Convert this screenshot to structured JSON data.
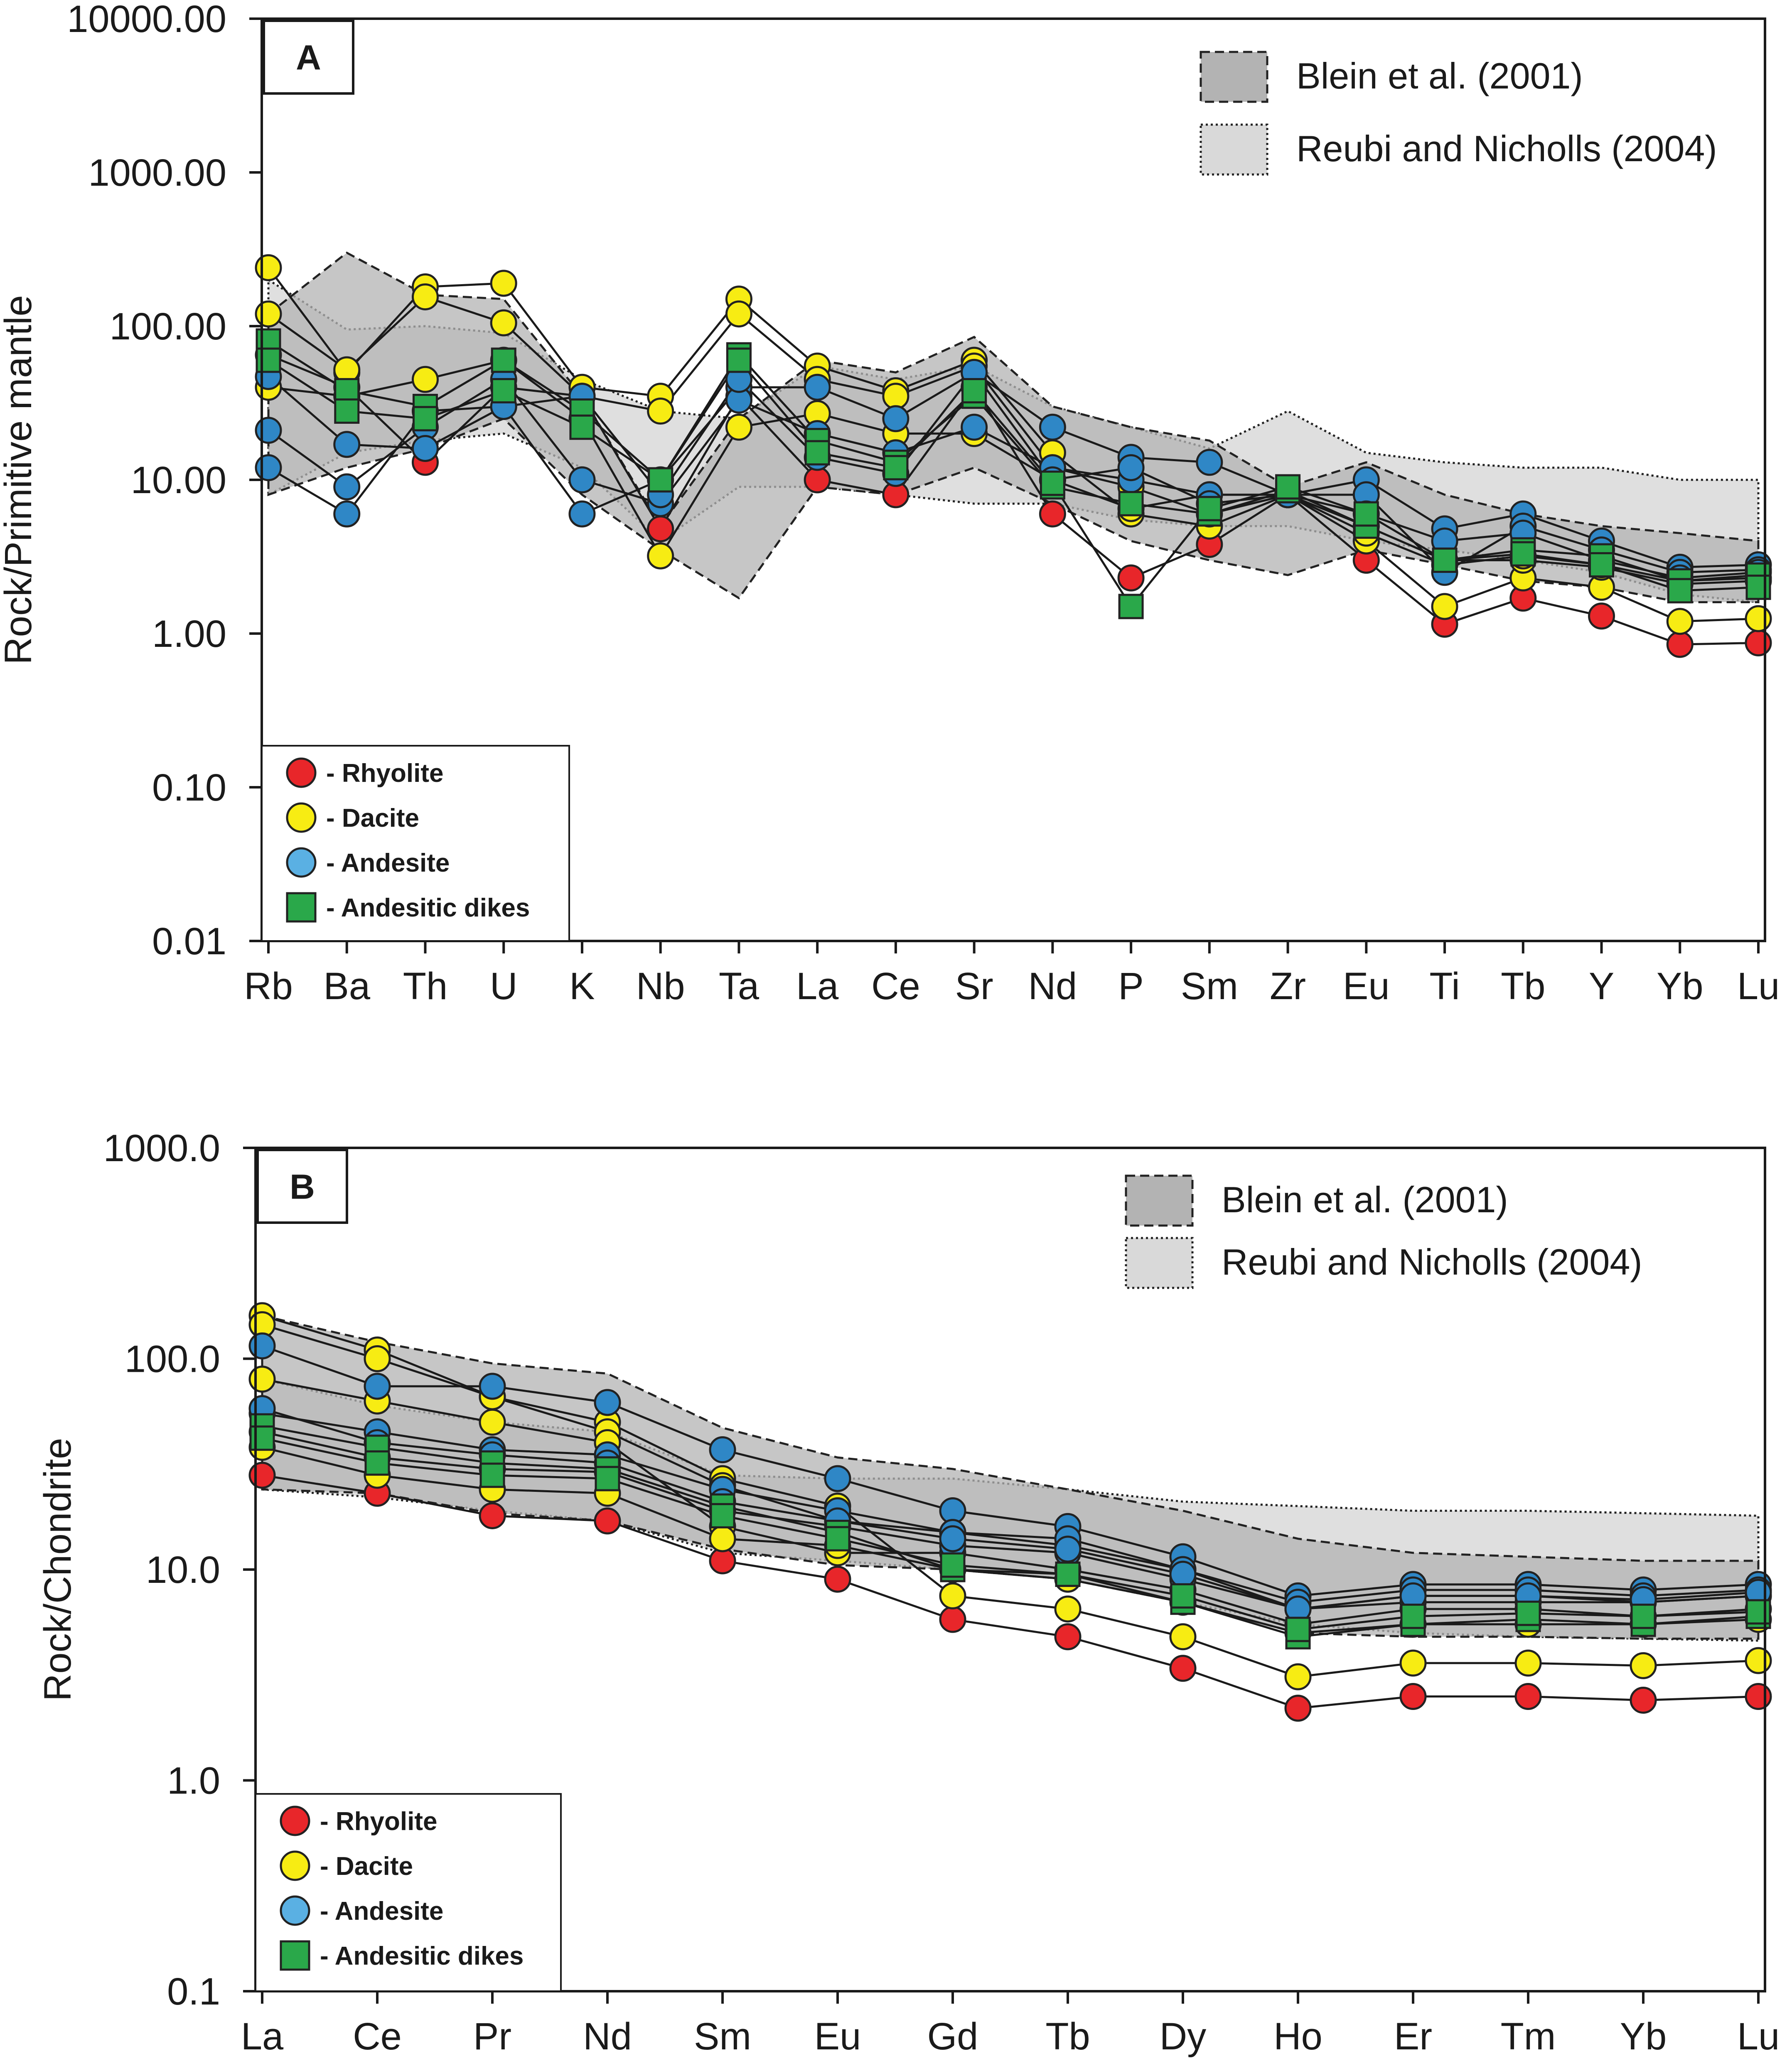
{
  "colors": {
    "rhyolite": "#e8262a",
    "dacite": "#f7ec13",
    "andesite": "#5ab0e3",
    "andesite_dark": "#2f87c6",
    "andesitic_dikes": "#2aa84a",
    "blein_fill": "#b3b3b3",
    "reubi_fill": "#d9d9d9",
    "line": "#1a1a1a"
  },
  "legend": {
    "rhyolite": "- Rhyolite",
    "dacite": "- Dacite",
    "andesite": "- Andesite",
    "dikes": "- Andesitic dikes",
    "blein": "Blein et al. (2001)",
    "reubi": "Reubi and Nicholls (2004)"
  },
  "chart_data": [
    {
      "panel": "A",
      "type": "line",
      "scale": "log",
      "ylabel": "Rock/Primitive mantle",
      "ylim": [
        0.01,
        10000
      ],
      "yticks": [
        "0.01",
        "0.10",
        "1.00",
        "10.00",
        "100.00",
        "1000.00",
        "10000.00"
      ],
      "categories": [
        "Rb",
        "Ba",
        "Th",
        "U",
        "K",
        "Nb",
        "Ta",
        "La",
        "Ce",
        "Sr",
        "Nd",
        "P",
        "Sm",
        "Zr",
        "Eu",
        "Ti",
        "Tb",
        "Y",
        "Yb",
        "Lu"
      ],
      "bands": [
        {
          "name": "Reubi and Nicholls (2004)",
          "upper": [
            200,
            95,
            100,
            90,
            45,
            28,
            25,
            55,
            45,
            55,
            30,
            22,
            16,
            28,
            15,
            13,
            12,
            12,
            10,
            10
          ],
          "lower": [
            8,
            15,
            18,
            20,
            12,
            4,
            9,
            9,
            8,
            7,
            7,
            5.5,
            5,
            5,
            4,
            3.5,
            3,
            2.5,
            1.8,
            1.6
          ]
        },
        {
          "name": "Blein et al. (2001)",
          "upper": [
            120,
            300,
            160,
            150,
            35,
            5,
            25,
            60,
            50,
            85,
            30,
            22,
            18,
            9,
            13,
            8,
            6,
            5,
            4.5,
            4
          ],
          "lower": [
            8,
            12,
            16,
            25,
            8,
            3.5,
            1.7,
            9,
            8,
            12,
            7,
            4,
            3,
            2.4,
            3.5,
            2.8,
            2.2,
            2,
            1.6,
            1.6
          ]
        }
      ],
      "series": [
        {
          "name": "Rhyolite",
          "type": "Rhyolite",
          "values": [
            65,
            40,
            13,
            40,
            35,
            4.8,
            35,
            10,
            8,
            40,
            6,
            2.3,
            3.8,
            8,
            3,
            1.15,
            1.7,
            1.3,
            0.85,
            0.87
          ]
        },
        {
          "name": "Dacite 1",
          "type": "Dacite",
          "values": [
            240,
            50,
            180,
            190,
            40,
            35,
            150,
            55,
            38,
            60,
            15,
            6,
            5,
            8,
            4,
            1.5,
            2.3,
            2,
            1.2,
            1.25
          ]
        },
        {
          "name": "Dacite 2",
          "type": "Dacite",
          "values": [
            120,
            52,
            155,
            105,
            35,
            28,
            120,
            45,
            35,
            55,
            12,
            9,
            6,
            8,
            5,
            3,
            3,
            2.7,
            2.1,
            2.2
          ]
        },
        {
          "name": "Dacite 3",
          "type": "Dacite",
          "values": [
            40,
            35,
            45,
            60,
            25,
            3.2,
            22,
            27,
            20,
            20,
            10,
            6.5,
            8,
            8,
            4.5,
            2.8,
            3.2,
            2.8,
            2.2,
            2.3
          ]
        },
        {
          "name": "Andesite 1",
          "type": "Andesite",
          "values": [
            12,
            6,
            28,
            30,
            6,
            10,
            40,
            40,
            25,
            50,
            22,
            14,
            13,
            8,
            10,
            4.8,
            6,
            4,
            2.7,
            2.8
          ]
        },
        {
          "name": "Andesite 2",
          "type": "Andesite",
          "values": [
            21,
            9,
            22,
            45,
            10,
            7,
            33,
            20,
            15,
            22,
            12,
            10,
            8,
            8,
            8,
            2.5,
            5,
            3.5,
            2.5,
            2.6
          ]
        },
        {
          "name": "Andesite 3",
          "type": "Andesite",
          "values": [
            47,
            17,
            16,
            30,
            35,
            8,
            45,
            14,
            11,
            50,
            10,
            12,
            7,
            8,
            6,
            4,
            4.5,
            3,
            2.3,
            2.5
          ]
        },
        {
          "name": "Dikes 1",
          "type": "Dikes",
          "values": [
            80,
            38,
            30,
            60,
            28,
            10,
            65,
            18,
            13,
            35,
            9,
            7,
            6,
            8.5,
            5,
            3,
            3.5,
            3.2,
            2.2,
            2.4
          ]
        },
        {
          "name": "Dikes 2",
          "type": "Dikes",
          "values": [
            60,
            28,
            25,
            38,
            22,
            10,
            60,
            15,
            12,
            38,
            9.5,
            1.5,
            6.5,
            9,
            6,
            3,
            3.3,
            2.8,
            1.9,
            2
          ]
        }
      ]
    },
    {
      "panel": "B",
      "type": "line",
      "scale": "log",
      "ylabel": "Rock/Chondrite",
      "ylim": [
        0.1,
        1000
      ],
      "yticks": [
        "0.1",
        "1.0",
        "10.0",
        "100.0",
        "1000.0"
      ],
      "categories": [
        "La",
        "Ce",
        "Pr",
        "Nd",
        "Sm",
        "Eu",
        "Gd",
        "Tb",
        "Dy",
        "Ho",
        "Er",
        "Tm",
        "Yb",
        "Lu"
      ],
      "bands": [
        {
          "name": "Reubi and Nicholls (2004)",
          "upper": [
            80,
            60,
            50,
            45,
            28,
            27,
            27,
            24,
            21,
            20,
            19,
            19,
            18.5,
            18
          ],
          "lower": [
            24,
            22,
            19,
            17,
            12,
            11,
            10,
            9,
            7,
            5.5,
            5,
            4.8,
            4.7,
            4.6
          ]
        },
        {
          "name": "Blein et al. (2001)",
          "upper": [
            160,
            120,
            95,
            85,
            47,
            34,
            30,
            24,
            19,
            14,
            12,
            11.5,
            11,
            11
          ],
          "lower": [
            24,
            23,
            18.5,
            17,
            12.5,
            10.5,
            10,
            9,
            7,
            5,
            4.8,
            4.8,
            4.7,
            4.7
          ]
        }
      ],
      "series": [
        {
          "name": "Rhyolite",
          "type": "Rhyolite",
          "values": [
            28,
            23,
            18,
            17,
            11,
            9,
            5.8,
            4.8,
            3.4,
            2.2,
            2.5,
            2.5,
            2.4,
            2.5
          ]
        },
        {
          "name": "Dacite 1",
          "type": "Dacite",
          "values": [
            160,
            110,
            66,
            50,
            27,
            20,
            7.5,
            6.5,
            4.8,
            3.1,
            3.6,
            3.6,
            3.5,
            3.7
          ]
        },
        {
          "name": "Dacite 2",
          "type": "Dacite",
          "values": [
            145,
            100,
            66,
            45,
            25,
            17,
            15,
            13,
            10,
            6.5,
            7.5,
            7.5,
            7,
            7.5
          ]
        },
        {
          "name": "Dacite 3",
          "type": "Dacite",
          "values": [
            80,
            63,
            50,
            40,
            16,
            12,
            12,
            10,
            8,
            5.5,
            6.5,
            6.5,
            6,
            6.5
          ]
        },
        {
          "name": "Dacite 4",
          "type": "Dacite",
          "values": [
            38,
            28,
            24,
            23,
            14,
            13,
            10,
            9,
            7,
            5,
            5.5,
            5.5,
            5.5,
            5.8
          ]
        },
        {
          "name": "Andesite 1",
          "type": "Andesite",
          "values": [
            115,
            74,
            74,
            62,
            37,
            27,
            19,
            16,
            11.5,
            7.5,
            8.5,
            8.5,
            8,
            8.5
          ]
        },
        {
          "name": "Andesite 2",
          "type": "Andesite",
          "values": [
            55,
            45,
            37,
            35,
            24,
            19,
            15,
            14,
            10,
            7,
            8,
            8,
            7.5,
            8
          ]
        },
        {
          "name": "Andesite 3",
          "type": "Andesite",
          "values": [
            45,
            34,
            30,
            29,
            19,
            16,
            13,
            12,
            9,
            6.5,
            7,
            7,
            7,
            7.5
          ]
        },
        {
          "name": "Andesite 4",
          "type": "Andesite",
          "values": [
            58,
            40,
            35,
            32,
            21,
            17,
            14,
            12.5,
            9.5,
            6.5,
            7.5,
            7.5,
            7.2,
            7.8
          ]
        },
        {
          "name": "Dikes 1",
          "type": "Dikes",
          "values": [
            48,
            38,
            32,
            30,
            20,
            15,
            10,
            9.5,
            7,
            4.8,
            5.5,
            5.8,
            5.5,
            6
          ]
        },
        {
          "name": "Dikes 2",
          "type": "Dikes",
          "values": [
            42,
            32,
            28,
            27,
            18,
            14,
            10.5,
            9.5,
            7.5,
            5.2,
            6,
            6.2,
            6,
            6.3
          ]
        }
      ]
    }
  ]
}
